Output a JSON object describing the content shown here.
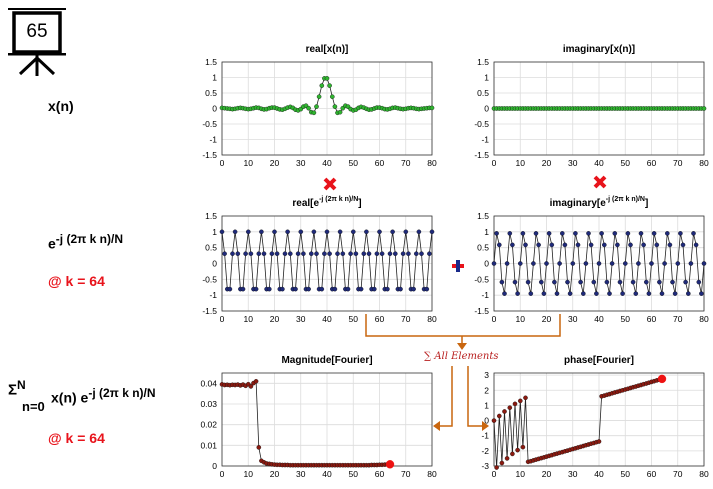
{
  "slide_number": "65",
  "row_labels": {
    "xn": "x(n)",
    "kernel_base": "e",
    "kernel_exp": "-j (2π k n)/N",
    "kernel_k": "@ k = 64",
    "sum_sigma": "Σ",
    "sum_upper": "N",
    "sum_lower": "n=0",
    "sum_body": "x(n) e",
    "sum_exp": "-j (2π k n)/N",
    "sum_k": "@ k = 64"
  },
  "annotations": {
    "sum_all_elements": "∑ All Elements"
  },
  "colors": {
    "green_marker": "#2fb52f",
    "navy_marker": "#1f2a7a",
    "dark_red_marker": "#8b1a10",
    "highlight_red": "#ee1111",
    "arrow_orange": "#c9660f",
    "operator_red": "#e8131b",
    "operator_blue": "#1a2a8a"
  },
  "chart_data": [
    {
      "id": "real_xn",
      "type": "line",
      "title": "real[x(n)]",
      "title_sup": "",
      "title_tail": "",
      "xlim": [
        0,
        80
      ],
      "ylim": [
        -1.5,
        1.5
      ],
      "xticks": [
        0,
        10,
        20,
        30,
        40,
        50,
        60,
        70,
        80
      ],
      "yticks": [
        -1.5,
        -1,
        -0.5,
        0,
        0.5,
        1,
        1.5
      ],
      "grid": true,
      "marker_color": "green_marker",
      "x": [
        0,
        1,
        2,
        3,
        4,
        5,
        6,
        7,
        8,
        9,
        10,
        11,
        12,
        13,
        14,
        15,
        16,
        17,
        18,
        19,
        20,
        21,
        22,
        23,
        24,
        25,
        26,
        27,
        28,
        29,
        30,
        31,
        32,
        33,
        34,
        35,
        36,
        37,
        38,
        39,
        40,
        41,
        42,
        43,
        44,
        45,
        46,
        47,
        48,
        49,
        50,
        51,
        52,
        53,
        54,
        55,
        56,
        57,
        58,
        59,
        60,
        61,
        62,
        63,
        64,
        65,
        66,
        67,
        68,
        69,
        70,
        71,
        72,
        73,
        74,
        75,
        76,
        77,
        78,
        79,
        80
      ],
      "y": [
        0.02,
        0.01,
        0,
        -0.01,
        -0.02,
        -0.01,
        0.01,
        0.02,
        0.01,
        -0.01,
        -0.02,
        -0.01,
        0.01,
        0.03,
        0.02,
        -0.01,
        -0.03,
        -0.02,
        0.01,
        0.03,
        0.03,
        0,
        -0.03,
        -0.04,
        -0.01,
        0.03,
        0.05,
        0.02,
        -0.04,
        -0.06,
        -0.02,
        0.06,
        0.09,
        0.01,
        -0.12,
        -0.14,
        0.06,
        0.38,
        0.74,
        0.97,
        0.97,
        0.74,
        0.38,
        0.06,
        -0.14,
        -0.12,
        0.01,
        0.09,
        0.06,
        -0.02,
        -0.06,
        -0.04,
        0.02,
        0.05,
        0.03,
        -0.01,
        -0.04,
        -0.03,
        0,
        0.03,
        0.03,
        0.01,
        -0.02,
        -0.03,
        -0.01,
        0.02,
        0.03,
        0.01,
        -0.01,
        -0.02,
        -0.01,
        0.01,
        0.02,
        0.01,
        -0.01,
        -0.02,
        -0.01,
        0,
        0.01,
        0.02,
        0.02
      ]
    },
    {
      "id": "imag_xn",
      "type": "line",
      "title": "imaginary[x(n)]",
      "title_sup": "",
      "title_tail": "",
      "xlim": [
        0,
        80
      ],
      "ylim": [
        -1.5,
        1.5
      ],
      "xticks": [
        0,
        10,
        20,
        30,
        40,
        50,
        60,
        70,
        80
      ],
      "yticks": [
        -1.5,
        -1,
        -0.5,
        0,
        0.5,
        1,
        1.5
      ],
      "grid": true,
      "marker_color": "green_marker",
      "x": [
        0,
        1,
        2,
        3,
        4,
        5,
        6,
        7,
        8,
        9,
        10,
        11,
        12,
        13,
        14,
        15,
        16,
        17,
        18,
        19,
        20,
        21,
        22,
        23,
        24,
        25,
        26,
        27,
        28,
        29,
        30,
        31,
        32,
        33,
        34,
        35,
        36,
        37,
        38,
        39,
        40,
        41,
        42,
        43,
        44,
        45,
        46,
        47,
        48,
        49,
        50,
        51,
        52,
        53,
        54,
        55,
        56,
        57,
        58,
        59,
        60,
        61,
        62,
        63,
        64,
        65,
        66,
        67,
        68,
        69,
        70,
        71,
        72,
        73,
        74,
        75,
        76,
        77,
        78,
        79,
        80
      ],
      "y": [
        0,
        0,
        0,
        0,
        0,
        0,
        0,
        0,
        0,
        0,
        0,
        0,
        0,
        0,
        0,
        0,
        0,
        0,
        0,
        0,
        0,
        0,
        0,
        0,
        0,
        0,
        0,
        0,
        0,
        0,
        0,
        0,
        0,
        0,
        0,
        0,
        0,
        0,
        0,
        0,
        0,
        0,
        0,
        0,
        0,
        0,
        0,
        0,
        0,
        0,
        0,
        0,
        0,
        0,
        0,
        0,
        0,
        0,
        0,
        0,
        0,
        0,
        0,
        0,
        0,
        0,
        0,
        0,
        0,
        0,
        0,
        0,
        0,
        0,
        0,
        0,
        0,
        0,
        0,
        0,
        0
      ]
    },
    {
      "id": "real_kernel",
      "type": "line",
      "title": "real[e",
      "title_sup": "-j (2π k n)/N",
      "title_tail": "]",
      "xlim": [
        0,
        80
      ],
      "ylim": [
        -1.5,
        1.5
      ],
      "xticks": [
        0,
        10,
        20,
        30,
        40,
        50,
        60,
        70,
        80
      ],
      "yticks": [
        -1.5,
        -1,
        -0.5,
        0,
        0.5,
        1,
        1.5
      ],
      "grid": true,
      "marker_color": "navy_marker",
      "x": [
        0,
        1,
        2,
        3,
        4,
        5,
        6,
        7,
        8,
        9,
        10,
        11,
        12,
        13,
        14,
        15,
        16,
        17,
        18,
        19,
        20,
        21,
        22,
        23,
        24,
        25,
        26,
        27,
        28,
        29,
        30,
        31,
        32,
        33,
        34,
        35,
        36,
        37,
        38,
        39,
        40,
        41,
        42,
        43,
        44,
        45,
        46,
        47,
        48,
        49,
        50,
        51,
        52,
        53,
        54,
        55,
        56,
        57,
        58,
        59,
        60,
        61,
        62,
        63,
        64,
        65,
        66,
        67,
        68,
        69,
        70,
        71,
        72,
        73,
        74,
        75,
        76,
        77,
        78,
        79,
        80
      ],
      "y": [
        1,
        0.309,
        -0.809,
        -0.809,
        0.309,
        1,
        0.309,
        -0.809,
        -0.809,
        0.309,
        1,
        0.309,
        -0.809,
        -0.809,
        0.309,
        1,
        0.309,
        -0.809,
        -0.809,
        0.309,
        1,
        0.309,
        -0.809,
        -0.809,
        0.309,
        1,
        0.309,
        -0.809,
        -0.809,
        0.309,
        1,
        0.309,
        -0.809,
        -0.809,
        0.309,
        1,
        0.309,
        -0.809,
        -0.809,
        0.309,
        1,
        0.309,
        -0.809,
        -0.809,
        0.309,
        1,
        0.309,
        -0.809,
        -0.809,
        0.309,
        1,
        0.309,
        -0.809,
        -0.809,
        0.309,
        1,
        0.309,
        -0.809,
        -0.809,
        0.309,
        1,
        0.309,
        -0.809,
        -0.809,
        0.309,
        1,
        0.309,
        -0.809,
        -0.809,
        0.309,
        1,
        0.309,
        -0.809,
        -0.809,
        0.309,
        1,
        0.309,
        -0.809,
        -0.809,
        0.309,
        1
      ]
    },
    {
      "id": "imag_kernel",
      "type": "line",
      "title": "imaginary[e",
      "title_sup": "-j (2π k n)/N",
      "title_tail": "]",
      "xlim": [
        0,
        80
      ],
      "ylim": [
        -1.5,
        1.5
      ],
      "xticks": [
        0,
        10,
        20,
        30,
        40,
        50,
        60,
        70,
        80
      ],
      "yticks": [
        -1.5,
        -1,
        -0.5,
        0,
        0.5,
        1,
        1.5
      ],
      "grid": true,
      "marker_color": "navy_marker",
      "x": [
        0,
        1,
        2,
        3,
        4,
        5,
        6,
        7,
        8,
        9,
        10,
        11,
        12,
        13,
        14,
        15,
        16,
        17,
        18,
        19,
        20,
        21,
        22,
        23,
        24,
        25,
        26,
        27,
        28,
        29,
        30,
        31,
        32,
        33,
        34,
        35,
        36,
        37,
        38,
        39,
        40,
        41,
        42,
        43,
        44,
        45,
        46,
        47,
        48,
        49,
        50,
        51,
        52,
        53,
        54,
        55,
        56,
        57,
        58,
        59,
        60,
        61,
        62,
        63,
        64,
        65,
        66,
        67,
        68,
        69,
        70,
        71,
        72,
        73,
        74,
        75,
        76,
        77,
        78,
        79,
        80
      ],
      "y": [
        0,
        0.951,
        0.588,
        -0.588,
        -0.951,
        0,
        0.951,
        0.588,
        -0.588,
        -0.951,
        0,
        0.951,
        0.588,
        -0.588,
        -0.951,
        0,
        0.951,
        0.588,
        -0.588,
        -0.951,
        0,
        0.951,
        0.588,
        -0.588,
        -0.951,
        0,
        0.951,
        0.588,
        -0.588,
        -0.951,
        0,
        0.951,
        0.588,
        -0.588,
        -0.951,
        0,
        0.951,
        0.588,
        -0.588,
        -0.951,
        0,
        0.951,
        0.588,
        -0.588,
        -0.951,
        0,
        0.951,
        0.588,
        -0.588,
        -0.951,
        0,
        0.951,
        0.588,
        -0.588,
        -0.951,
        0,
        0.951,
        0.588,
        -0.588,
        -0.951,
        0,
        0.951,
        0.588,
        -0.588,
        -0.951,
        0,
        0.951,
        0.588,
        -0.588,
        -0.951,
        0,
        0.951,
        0.588,
        -0.588,
        -0.951,
        0,
        0.951,
        0.588,
        -0.588,
        -0.951,
        0
      ]
    },
    {
      "id": "magnitude",
      "type": "line",
      "title": "Magnitude[Fourier]",
      "title_sup": "",
      "title_tail": "",
      "xlim": [
        0,
        80
      ],
      "ylim": [
        0,
        0.045
      ],
      "xticks": [
        0,
        10,
        20,
        30,
        40,
        50,
        60,
        70,
        80
      ],
      "yticks": [
        0,
        0.01,
        0.02,
        0.03,
        0.04
      ],
      "grid": true,
      "marker_color": "dark_red_marker",
      "highlight_index": 64,
      "x": [
        0,
        1,
        2,
        3,
        4,
        5,
        6,
        7,
        8,
        9,
        10,
        11,
        12,
        13,
        14,
        15,
        16,
        17,
        18,
        19,
        20,
        21,
        22,
        23,
        24,
        25,
        26,
        27,
        28,
        29,
        30,
        31,
        32,
        33,
        34,
        35,
        36,
        37,
        38,
        39,
        40,
        41,
        42,
        43,
        44,
        45,
        46,
        47,
        48,
        49,
        50,
        51,
        52,
        53,
        54,
        55,
        56,
        57,
        58,
        59,
        60,
        61,
        62,
        63,
        64
      ],
      "y": [
        0.0395,
        0.0392,
        0.0393,
        0.0391,
        0.0393,
        0.0392,
        0.0394,
        0.039,
        0.0394,
        0.0388,
        0.0396,
        0.0385,
        0.0401,
        0.041,
        0.009,
        0.0025,
        0.0018,
        0.0012,
        0.001,
        0.0008,
        0.0007,
        0.0006,
        0.0006,
        0.0005,
        0.0005,
        0.0005,
        0.0004,
        0.0004,
        0.0004,
        0.0004,
        0.0004,
        0.0004,
        0.0004,
        0.0004,
        0.0004,
        0.0004,
        0.0004,
        0.0004,
        0.0004,
        0.0004,
        0.0004,
        0.0004,
        0.0004,
        0.0004,
        0.0004,
        0.0004,
        0.0004,
        0.0004,
        0.0004,
        0.0004,
        0.0004,
        0.0004,
        0.0004,
        0.0004,
        0.0004,
        0.0004,
        0.0004,
        0.0005,
        0.0005,
        0.0005,
        0.0006,
        0.0006,
        0.0007,
        0.0008,
        0.0008
      ]
    },
    {
      "id": "phase",
      "type": "line",
      "title": "phase[Fourier]",
      "title_sup": "",
      "title_tail": "",
      "xlim": [
        0,
        80
      ],
      "ylim": [
        -3,
        3.14
      ],
      "xticks": [
        0,
        10,
        20,
        30,
        40,
        50,
        60,
        70,
        80
      ],
      "yticks": [
        -3,
        -2,
        -1,
        0,
        1,
        2,
        3
      ],
      "grid": true,
      "marker_color": "dark_red_marker",
      "highlight_index": 64,
      "x": [
        0,
        1,
        2,
        3,
        4,
        5,
        6,
        7,
        8,
        9,
        10,
        11,
        12,
        13,
        14,
        15,
        16,
        17,
        18,
        19,
        20,
        21,
        22,
        23,
        24,
        25,
        26,
        27,
        28,
        29,
        30,
        31,
        32,
        33,
        34,
        35,
        36,
        37,
        38,
        39,
        40,
        41,
        42,
        43,
        44,
        45,
        46,
        47,
        48,
        49,
        50,
        51,
        52,
        53,
        54,
        55,
        56,
        57,
        58,
        59,
        60,
        61,
        62,
        63,
        64
      ],
      "y": [
        0,
        -3.1,
        0.3,
        -2.8,
        0.6,
        -2.5,
        0.85,
        -2.2,
        1.1,
        -1.95,
        1.3,
        -1.75,
        1.5,
        -2.72,
        -2.68,
        -2.63,
        -2.58,
        -2.53,
        -2.48,
        -2.43,
        -2.38,
        -2.33,
        -2.28,
        -2.23,
        -2.18,
        -2.13,
        -2.08,
        -2.03,
        -1.98,
        -1.93,
        -1.88,
        -1.83,
        -1.78,
        -1.73,
        -1.68,
        -1.63,
        -1.58,
        -1.53,
        -1.48,
        -1.43,
        -1.38,
        1.6,
        1.65,
        1.7,
        1.75,
        1.8,
        1.85,
        1.9,
        1.95,
        2.0,
        2.05,
        2.1,
        2.15,
        2.2,
        2.25,
        2.3,
        2.35,
        2.4,
        2.45,
        2.5,
        2.55,
        2.6,
        2.65,
        2.7,
        2.75
      ]
    }
  ]
}
